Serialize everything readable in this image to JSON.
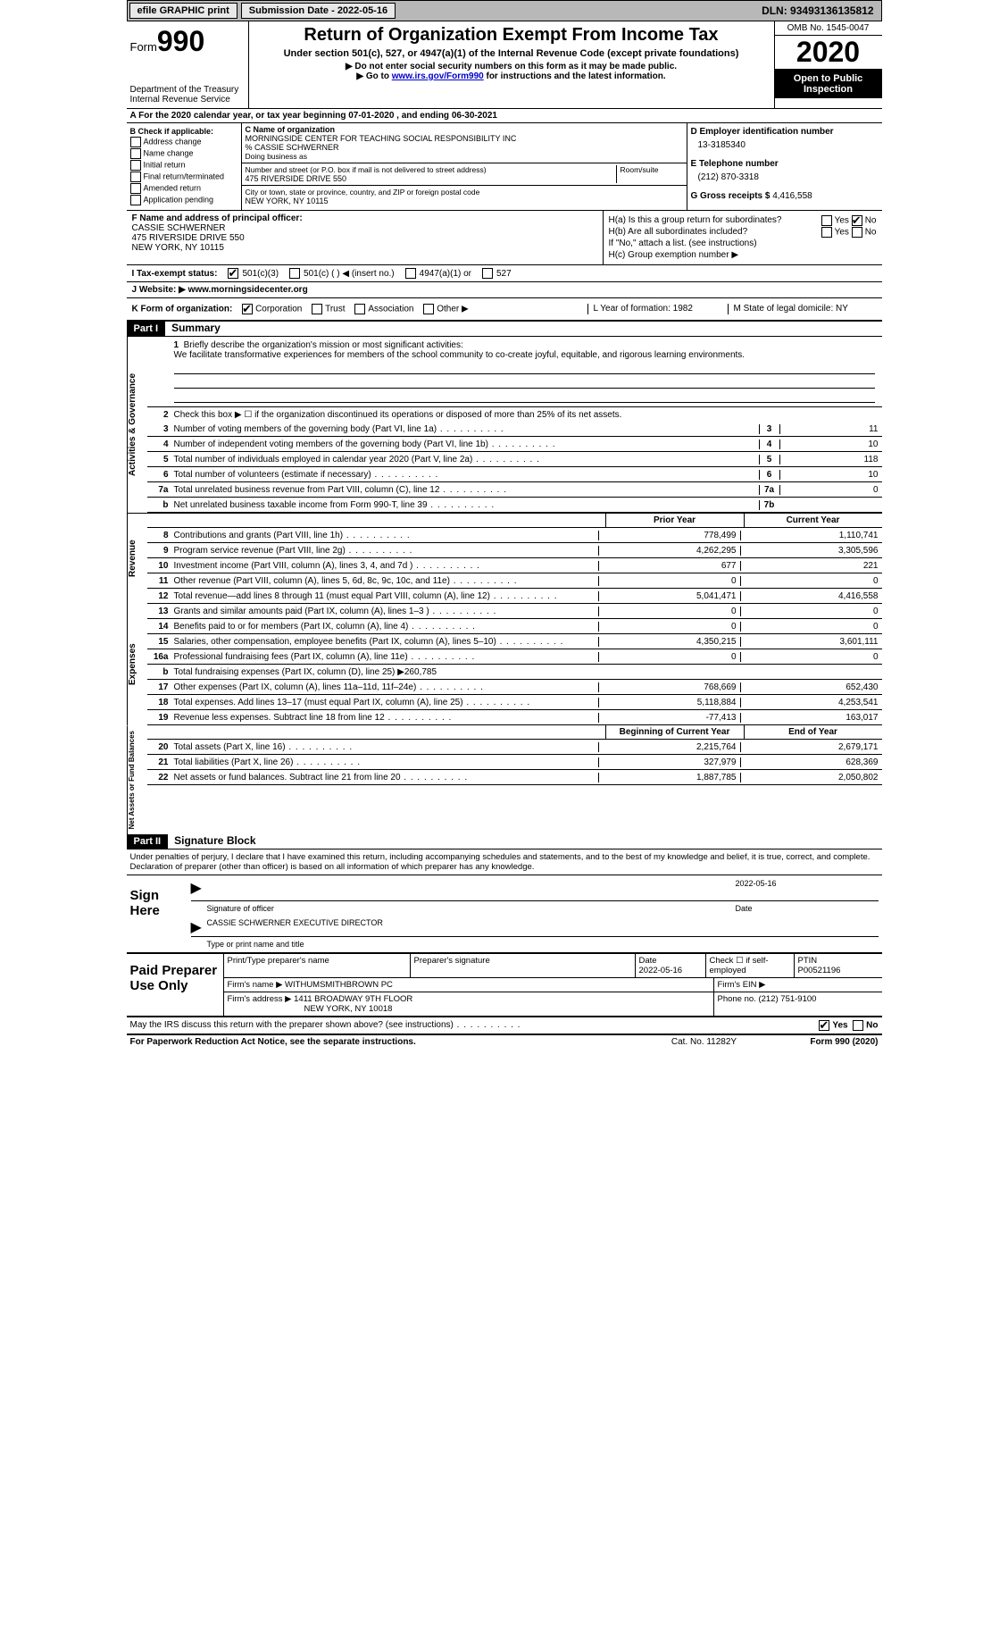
{
  "topbar": {
    "efile": "efile GRAPHIC print",
    "sub_date_label": "Submission Date - 2022-05-16",
    "dln": "DLN: 93493136135812"
  },
  "header": {
    "form_word": "Form",
    "form_num": "990",
    "dept": "Department of the Treasury\nInternal Revenue Service",
    "title": "Return of Organization Exempt From Income Tax",
    "subtitle": "Under section 501(c), 527, or 4947(a)(1) of the Internal Revenue Code (except private foundations)",
    "note1": "▶ Do not enter social security numbers on this form as it may be made public.",
    "note2_pre": "▶ Go to ",
    "note2_link": "www.irs.gov/Form990",
    "note2_post": " for instructions and the latest information.",
    "omb": "OMB No. 1545-0047",
    "year": "2020",
    "inspection": "Open to Public Inspection"
  },
  "line_a": "A For the 2020 calendar year, or tax year beginning 07-01-2020   , and ending 06-30-2021",
  "box_b": {
    "hdr": "B Check if applicable:",
    "opts": [
      "Address change",
      "Name change",
      "Initial return",
      "Final return/terminated",
      "Amended return",
      "Application pending"
    ]
  },
  "box_c": {
    "name_hdr": "C Name of organization",
    "name": "MORNINGSIDE CENTER FOR TEACHING SOCIAL RESPONSIBILITY INC",
    "care_of": "% CASSIE SCHWERNER",
    "dba_hdr": "Doing business as",
    "addr_hdr": "Number and street (or P.O. box if mail is not delivered to street address)",
    "room_hdr": "Room/suite",
    "addr": "475 RIVERSIDE DRIVE 550",
    "city_hdr": "City or town, state or province, country, and ZIP or foreign postal code",
    "city": "NEW YORK, NY  10115"
  },
  "box_d": {
    "ein_hdr": "D Employer identification number",
    "ein": "13-3185340",
    "tel_hdr": "E Telephone number",
    "tel": "(212) 870-3318",
    "gross_hdr": "G Gross receipts $",
    "gross": "4,416,558"
  },
  "box_f": {
    "hdr": "F  Name and address of principal officer:",
    "name": "CASSIE SCHWERNER",
    "addr1": "475 RIVERSIDE DRIVE 550",
    "addr2": "NEW YORK, NY  10115"
  },
  "box_h": {
    "a": "H(a)  Is this a group return for subordinates?",
    "b": "H(b)  Are all subordinates included?",
    "b_note": "If \"No,\" attach a list. (see instructions)",
    "c": "H(c)  Group exemption number ▶"
  },
  "row_i": {
    "label": "I  Tax-exempt status:",
    "o1": "501(c)(3)",
    "o2": "501(c) (   ) ◀ (insert no.)",
    "o3": "4947(a)(1) or",
    "o4": "527"
  },
  "row_j": "J  Website: ▶  www.morningsidecenter.org",
  "row_k": {
    "label": "K Form of organization:",
    "opts": [
      "Corporation",
      "Trust",
      "Association",
      "Other ▶"
    ],
    "year": "L Year of formation: 1982",
    "state": "M State of legal domicile: NY"
  },
  "part1": {
    "tag": "Part I",
    "title": "Summary"
  },
  "mission": {
    "num": "1",
    "label": "Briefly describe the organization's mission or most significant activities:",
    "text": "We facilitate transformative experiences for members of the school community to co-create joyful, equitable, and rigorous learning environments."
  },
  "gov_lines": [
    {
      "n": "2",
      "t": "Check this box ▶ ☐  if the organization discontinued its operations or disposed of more than 25% of its net assets."
    },
    {
      "n": "3",
      "t": "Number of voting members of the governing body (Part VI, line 1a)",
      "b": "3",
      "v": "11"
    },
    {
      "n": "4",
      "t": "Number of independent voting members of the governing body (Part VI, line 1b)",
      "b": "4",
      "v": "10"
    },
    {
      "n": "5",
      "t": "Total number of individuals employed in calendar year 2020 (Part V, line 2a)",
      "b": "5",
      "v": "118"
    },
    {
      "n": "6",
      "t": "Total number of volunteers (estimate if necessary)",
      "b": "6",
      "v": "10"
    },
    {
      "n": "7a",
      "t": "Total unrelated business revenue from Part VIII, column (C), line 12",
      "b": "7a",
      "v": "0"
    },
    {
      "n": "b",
      "t": "Net unrelated business taxable income from Form 990-T, line 39",
      "b": "7b",
      "v": ""
    }
  ],
  "col_hdrs": {
    "py": "Prior Year",
    "cy": "Current Year"
  },
  "rev_lines": [
    {
      "n": "8",
      "t": "Contributions and grants (Part VIII, line 1h)",
      "py": "778,499",
      "cy": "1,110,741"
    },
    {
      "n": "9",
      "t": "Program service revenue (Part VIII, line 2g)",
      "py": "4,262,295",
      "cy": "3,305,596"
    },
    {
      "n": "10",
      "t": "Investment income (Part VIII, column (A), lines 3, 4, and 7d )",
      "py": "677",
      "cy": "221"
    },
    {
      "n": "11",
      "t": "Other revenue (Part VIII, column (A), lines 5, 6d, 8c, 9c, 10c, and 11e)",
      "py": "0",
      "cy": "0"
    },
    {
      "n": "12",
      "t": "Total revenue—add lines 8 through 11 (must equal Part VIII, column (A), line 12)",
      "py": "5,041,471",
      "cy": "4,416,558"
    }
  ],
  "exp_lines": [
    {
      "n": "13",
      "t": "Grants and similar amounts paid (Part IX, column (A), lines 1–3 )",
      "py": "0",
      "cy": "0"
    },
    {
      "n": "14",
      "t": "Benefits paid to or for members (Part IX, column (A), line 4)",
      "py": "0",
      "cy": "0"
    },
    {
      "n": "15",
      "t": "Salaries, other compensation, employee benefits (Part IX, column (A), lines 5–10)",
      "py": "4,350,215",
      "cy": "3,601,111"
    },
    {
      "n": "16a",
      "t": "Professional fundraising fees (Part IX, column (A), line 11e)",
      "py": "0",
      "cy": "0"
    },
    {
      "n": "b",
      "t": "Total fundraising expenses (Part IX, column (D), line 25) ▶260,785",
      "shaded": true
    },
    {
      "n": "17",
      "t": "Other expenses (Part IX, column (A), lines 11a–11d, 11f–24e)",
      "py": "768,669",
      "cy": "652,430"
    },
    {
      "n": "18",
      "t": "Total expenses. Add lines 13–17 (must equal Part IX, column (A), line 25)",
      "py": "5,118,884",
      "cy": "4,253,541"
    },
    {
      "n": "19",
      "t": "Revenue less expenses. Subtract line 18 from line 12",
      "py": "-77,413",
      "cy": "163,017"
    }
  ],
  "na_hdrs": {
    "b": "Beginning of Current Year",
    "e": "End of Year"
  },
  "na_lines": [
    {
      "n": "20",
      "t": "Total assets (Part X, line 16)",
      "py": "2,215,764",
      "cy": "2,679,171"
    },
    {
      "n": "21",
      "t": "Total liabilities (Part X, line 26)",
      "py": "327,979",
      "cy": "628,369"
    },
    {
      "n": "22",
      "t": "Net assets or fund balances. Subtract line 21 from line 20",
      "py": "1,887,785",
      "cy": "2,050,802"
    }
  ],
  "part2": {
    "tag": "Part II",
    "title": "Signature Block"
  },
  "sig_intro": "Under penalties of perjury, I declare that I have examined this return, including accompanying schedules and statements, and to the best of my knowledge and belief, it is true, correct, and complete. Declaration of preparer (other than officer) is based on all information of which preparer has any knowledge.",
  "sign": {
    "label": "Sign Here",
    "sig_of": "Signature of officer",
    "date": "2022-05-16",
    "date_lbl": "Date",
    "name": "CASSIE SCHWERNER  EXECUTIVE DIRECTOR",
    "name_lbl": "Type or print name and title"
  },
  "paid": {
    "label": "Paid Preparer Use Only",
    "h1": "Print/Type preparer's name",
    "h2": "Preparer's signature",
    "h3": "Date",
    "h4": "Check ☐ if self-employed",
    "h5": "PTIN",
    "date": "2022-05-16",
    "ptin": "P00521196",
    "firm_lbl": "Firm's name  ▶",
    "firm": "WITHUMSMITHBROWN PC",
    "ein_lbl": "Firm's EIN ▶",
    "addr_lbl": "Firm's address ▶",
    "addr": "1411 BROADWAY 9TH FLOOR",
    "city": "NEW YORK, NY  10018",
    "phone_lbl": "Phone no.",
    "phone": "(212) 751-9100"
  },
  "discuss": "May the IRS discuss this return with the preparer shown above? (see instructions)",
  "footer": {
    "l": "For Paperwork Reduction Act Notice, see the separate instructions.",
    "m": "Cat. No. 11282Y",
    "r": "Form 990 (2020)"
  },
  "side": {
    "gov": "Activities & Governance",
    "rev": "Revenue",
    "exp": "Expenses",
    "na": "Net Assets or Fund Balances"
  },
  "yn": {
    "yes": "Yes",
    "no": "No"
  }
}
